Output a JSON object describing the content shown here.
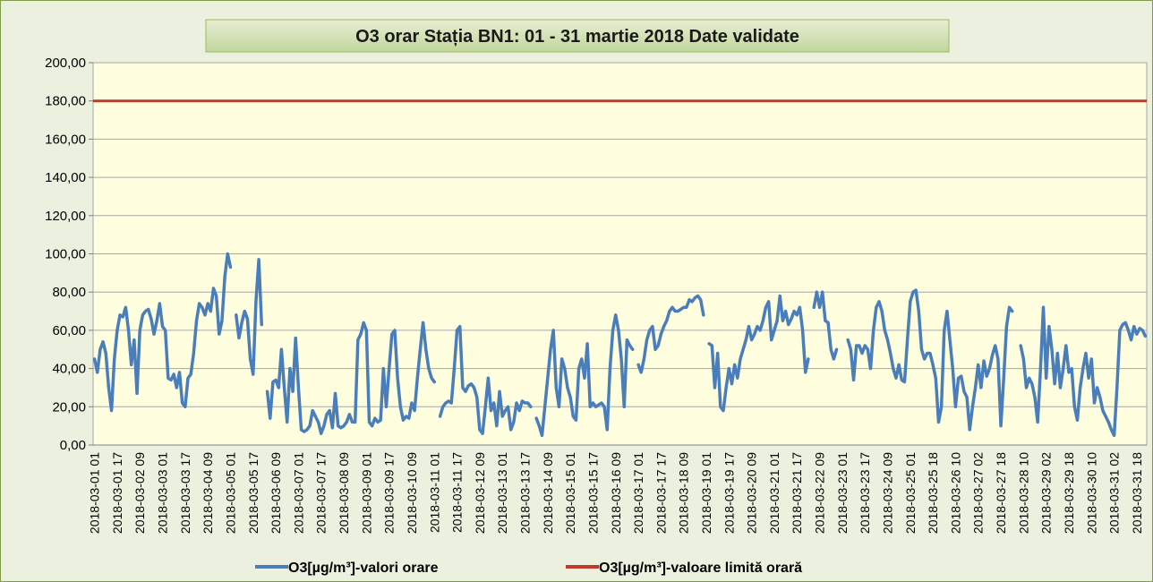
{
  "chart_data": {
    "type": "line",
    "title": "O3 orar Stația BN1: 01 - 31 martie 2018 Date validate",
    "ylim": [
      0,
      200
    ],
    "yticks": [
      {
        "value": 0,
        "label": "0,00"
      },
      {
        "value": 20,
        "label": "20,00"
      },
      {
        "value": 40,
        "label": "40,00"
      },
      {
        "value": 60,
        "label": "60,00"
      },
      {
        "value": 80,
        "label": "80,00"
      },
      {
        "value": 100,
        "label": "100,00"
      },
      {
        "value": 120,
        "label": "120,00"
      },
      {
        "value": 140,
        "label": "140,00"
      },
      {
        "value": 160,
        "label": "160,00"
      },
      {
        "value": 180,
        "label": "180,00"
      },
      {
        "value": 200,
        "label": "200,00"
      }
    ],
    "grid": true,
    "legend": "bottom",
    "categories": [
      "2018-03-01 01",
      null,
      null,
      null,
      null,
      null,
      null,
      null,
      "2018-03-01 17",
      null,
      null,
      null,
      null,
      null,
      null,
      null,
      "2018-03-02 09",
      null,
      null,
      null,
      null,
      null,
      null,
      null,
      "2018-03-03 01",
      null,
      null,
      null,
      null,
      null,
      null,
      null,
      "2018-03-03 17",
      null,
      null,
      null,
      null,
      null,
      null,
      null,
      "2018-03-04 09",
      null,
      null,
      null,
      null,
      null,
      null,
      null,
      "2018-03-05 01",
      null,
      null,
      null,
      null,
      null,
      null,
      null,
      "2018-03-05 17",
      null,
      null,
      null,
      null,
      null,
      null,
      null,
      "2018-03-06 09",
      null,
      null,
      null,
      null,
      null,
      null,
      null,
      "2018-03-07 01",
      null,
      null,
      null,
      null,
      null,
      null,
      null,
      "2018-03-07 17",
      null,
      null,
      null,
      null,
      null,
      null,
      null,
      "2018-03-08 09",
      null,
      null,
      null,
      null,
      null,
      null,
      null,
      "2018-03-09 01",
      null,
      null,
      null,
      null,
      null,
      null,
      null,
      "2018-03-09 17",
      null,
      null,
      null,
      null,
      null,
      null,
      null,
      "2018-03-10 09",
      null,
      null,
      null,
      null,
      null,
      null,
      null,
      "2018-03-11 01",
      null,
      null,
      null,
      null,
      null,
      null,
      null,
      "2018-03-11 17",
      null,
      null,
      null,
      null,
      null,
      null,
      null,
      "2018-03-12 09",
      null,
      null,
      null,
      null,
      null,
      null,
      null,
      "2018-03-13 01",
      null,
      null,
      null,
      null,
      null,
      null,
      null,
      "2018-03-13 17",
      null,
      null,
      null,
      null,
      null,
      null,
      null,
      "2018-03-14 09",
      null,
      null,
      null,
      null,
      null,
      null,
      null,
      "2018-03-15 01",
      null,
      null,
      null,
      null,
      null,
      null,
      null,
      "2018-03-15 17",
      null,
      null,
      null,
      null,
      null,
      null,
      null,
      "2018-03-16 09",
      null,
      null,
      null,
      null,
      null,
      null,
      null,
      "2018-03-17 01",
      null,
      null,
      null,
      null,
      null,
      null,
      null,
      "2018-03-17 17",
      null,
      null,
      null,
      null,
      null,
      null,
      null,
      "2018-03-18 09",
      null,
      null,
      null,
      null,
      null,
      null,
      null,
      "2018-03-19 01",
      null,
      null,
      null,
      null,
      null,
      null,
      null,
      "2018-03-19 17",
      null,
      null,
      null,
      null,
      null,
      null,
      null,
      "2018-03-20 09",
      null,
      null,
      null,
      null,
      null,
      null,
      null,
      "2018-03-21 01",
      null,
      null,
      null,
      null,
      null,
      null,
      null,
      "2018-03-21 17",
      null,
      null,
      null,
      null,
      null,
      null,
      null,
      "2018-03-22 09",
      null,
      null,
      null,
      null,
      null,
      null,
      null,
      "2018-03-23 01",
      null,
      null,
      null,
      null,
      null,
      null,
      null,
      "2018-03-23 17",
      null,
      null,
      null,
      null,
      null,
      null,
      null,
      "2018-03-24 09",
      null,
      null,
      null,
      null,
      null,
      null,
      null,
      "2018-03-25 01",
      null,
      null,
      null,
      null,
      null,
      null,
      null,
      "2018-03-25 18",
      null,
      null,
      null,
      null,
      null,
      null,
      null,
      "2018-03-26 10",
      null,
      null,
      null,
      null,
      null,
      null,
      null,
      "2018-03-27 02",
      null,
      null,
      null,
      null,
      null,
      null,
      null,
      "2018-03-27 18",
      null,
      null,
      null,
      null,
      null,
      null,
      null,
      "2018-03-28 10",
      null,
      null,
      null,
      null,
      null,
      null,
      null,
      "2018-03-29 02",
      null,
      null,
      null,
      null,
      null,
      null,
      null,
      "2018-03-29 18",
      null,
      null,
      null,
      null,
      null,
      null,
      null,
      "2018-03-30 10",
      null,
      null,
      null,
      null,
      null,
      null,
      null,
      "2018-03-31 02",
      null,
      null,
      null,
      null,
      null,
      null,
      null,
      "2018-03-31 18",
      null,
      null,
      null
    ],
    "series": [
      {
        "name": "O3[µg/m³]-valori orare",
        "color": "#4a7ebb",
        "values": [
          45,
          38,
          50,
          54,
          48,
          30,
          18,
          45,
          60,
          68,
          67,
          72,
          60,
          42,
          55,
          27,
          60,
          68,
          70,
          71,
          66,
          58,
          65,
          74,
          62,
          60,
          35,
          34,
          37,
          30,
          38,
          22,
          20,
          35,
          37,
          48,
          65,
          74,
          72,
          68,
          74,
          70,
          82,
          78,
          58,
          65,
          88,
          100,
          93,
          null,
          68,
          56,
          64,
          70,
          66,
          45,
          37,
          75,
          97,
          63,
          null,
          28,
          14,
          33,
          34,
          30,
          50,
          30,
          12,
          40,
          28,
          56,
          30,
          8,
          7,
          8,
          10,
          18,
          15,
          12,
          6,
          10,
          16,
          18,
          9,
          27,
          10,
          9,
          10,
          12,
          16,
          12,
          12,
          55,
          58,
          64,
          60,
          12,
          10,
          14,
          12,
          13,
          40,
          20,
          40,
          58,
          60,
          35,
          20,
          13,
          15,
          14,
          22,
          18,
          35,
          50,
          64,
          50,
          40,
          35,
          33,
          null,
          15,
          20,
          22,
          23,
          22,
          40,
          60,
          62,
          30,
          28,
          31,
          32,
          30,
          25,
          8,
          6,
          20,
          35,
          18,
          22,
          10,
          28,
          15,
          18,
          20,
          8,
          12,
          22,
          18,
          23,
          22,
          22,
          20,
          null,
          14,
          10,
          5,
          20,
          35,
          50,
          60,
          30,
          20,
          45,
          40,
          30,
          25,
          15,
          13,
          40,
          45,
          35,
          53,
          20,
          22,
          20,
          21,
          22,
          20,
          8,
          40,
          60,
          68,
          60,
          45,
          20,
          55,
          52,
          50,
          null,
          42,
          38,
          45,
          55,
          60,
          62,
          50,
          52,
          58,
          62,
          65,
          70,
          72,
          70,
          70,
          71,
          72,
          72,
          76,
          75,
          77,
          78,
          76,
          68,
          null,
          53,
          52,
          30,
          48,
          20,
          18,
          30,
          40,
          32,
          42,
          35,
          45,
          50,
          55,
          62,
          55,
          58,
          62,
          60,
          65,
          72,
          75,
          55,
          60,
          65,
          78,
          65,
          70,
          63,
          66,
          70,
          68,
          72,
          60,
          38,
          45,
          null,
          72,
          80,
          72,
          80,
          65,
          64,
          50,
          45,
          50,
          null,
          null,
          null,
          55,
          50,
          34,
          52,
          52,
          48,
          52,
          50,
          40,
          60,
          72,
          75,
          70,
          60,
          55,
          48,
          40,
          35,
          42,
          34,
          33,
          55,
          75,
          80,
          81,
          70,
          50,
          45,
          48,
          48,
          42,
          35,
          12,
          20,
          60,
          70,
          55,
          40,
          20,
          35,
          36,
          28,
          25,
          8,
          20,
          30,
          42,
          30,
          44,
          36,
          40,
          47,
          52,
          45,
          10,
          35,
          62,
          72,
          70,
          null,
          null,
          52,
          45,
          30,
          35,
          32,
          25,
          12,
          40,
          72,
          35,
          62,
          50,
          32,
          48,
          30,
          40,
          52,
          38,
          40,
          20,
          13,
          30,
          40,
          48,
          35,
          45,
          22,
          30,
          25,
          18,
          15,
          12,
          8,
          5,
          30,
          60,
          63,
          64,
          60,
          55,
          62,
          58,
          61,
          60,
          57
        ]
      }
    ],
    "reference_line": {
      "name": "O3[µg/m³]-valoare limită orară",
      "color": "#c0392b",
      "value": 180
    }
  }
}
